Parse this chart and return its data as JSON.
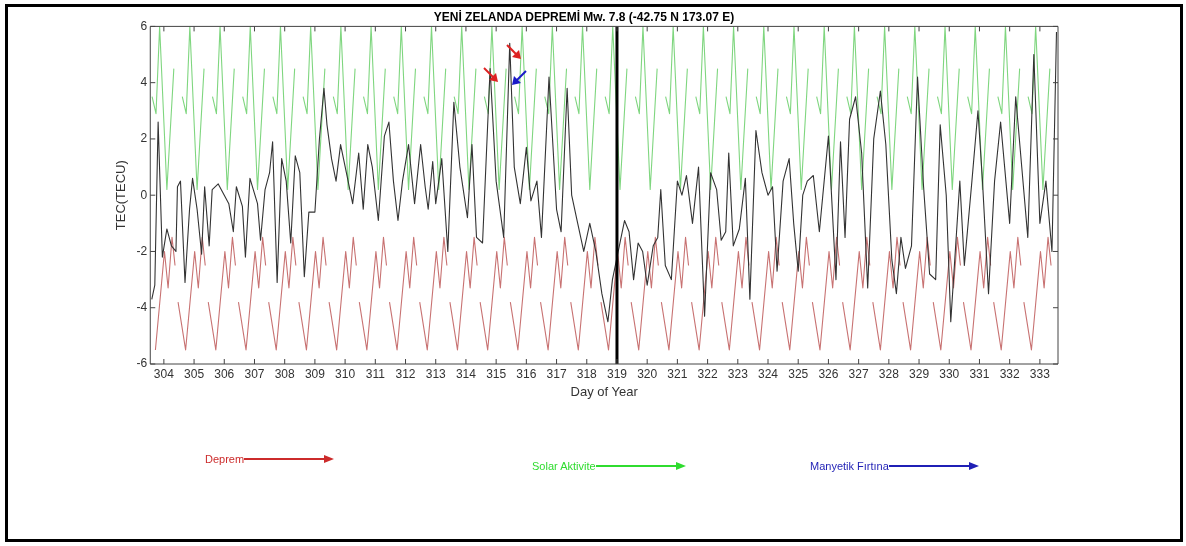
{
  "chart_data": {
    "type": "line",
    "title": "YENİ ZELANDA DEPREMİ Mw. 7.8 (-42.75 N 173.07 E)",
    "xlabel": "Day of Year",
    "ylabel": "TEC(TECU)",
    "xlim": [
      303.55,
      333.6
    ],
    "ylim": [
      -6,
      6
    ],
    "xticks": [
      304,
      305,
      306,
      307,
      308,
      309,
      310,
      311,
      312,
      313,
      314,
      315,
      316,
      317,
      318,
      319,
      320,
      321,
      322,
      323,
      324,
      325,
      326,
      327,
      328,
      329,
      330,
      331,
      332,
      333
    ],
    "yticks": [
      -6,
      -4,
      -2,
      0,
      2,
      4,
      6
    ],
    "series": [
      {
        "color": "#333333",
        "x": [
          303.6,
          303.7,
          303.81,
          303.95,
          304.1,
          304.25,
          304.4,
          304.45,
          304.55,
          304.7,
          304.85,
          304.95,
          305.1,
          305.25,
          305.35,
          305.5,
          305.6,
          305.8,
          306.0,
          306.15,
          306.3,
          306.4,
          306.6,
          306.7,
          306.85,
          307.1,
          307.2,
          307.35,
          307.5,
          307.6,
          307.75,
          307.9,
          308.05,
          308.2,
          308.35,
          308.5,
          308.65,
          308.8,
          309.0,
          309.15,
          309.3,
          309.4,
          309.55,
          309.7,
          309.85,
          310.1,
          310.25,
          310.45,
          310.6,
          310.75,
          310.9,
          311.1,
          311.3,
          311.45,
          311.6,
          311.75,
          311.9,
          312.1,
          312.3,
          312.5,
          312.65,
          312.75,
          312.9,
          313.0,
          313.2,
          313.4,
          313.6,
          313.8,
          314.05,
          314.2,
          314.35,
          314.55,
          314.8,
          315.0,
          315.25,
          315.45,
          315.6,
          315.8,
          316.0,
          316.15,
          316.35,
          316.5,
          316.75,
          317.0,
          317.15,
          317.35,
          317.5,
          317.7,
          317.9,
          318.1,
          318.3,
          318.5,
          318.7,
          318.85,
          319.25,
          319.4,
          319.55,
          319.7,
          319.85,
          320.0,
          320.2,
          320.35,
          320.45,
          320.6,
          320.8,
          321.0,
          321.15,
          321.3,
          321.5,
          321.7,
          321.9,
          322.1,
          322.3,
          322.45,
          322.6,
          322.7,
          322.85,
          323.05,
          323.25,
          323.4,
          323.6,
          323.8,
          324.0,
          324.15,
          324.3,
          324.5,
          324.7,
          324.85,
          325.0,
          325.15,
          325.3,
          325.5,
          325.7,
          326.0,
          326.25,
          326.4,
          326.55,
          326.7,
          326.9,
          327.1,
          327.3,
          327.5,
          327.72,
          327.9,
          328.1,
          328.25,
          328.4,
          328.55,
          328.75,
          328.95,
          329.15,
          329.35,
          329.55,
          329.7,
          329.9,
          330.05,
          330.2,
          330.35,
          330.5,
          330.75,
          330.95,
          331.1,
          331.3,
          331.5,
          331.7,
          332.0,
          332.2,
          332.4,
          332.6,
          332.8,
          333.0,
          333.2,
          333.4,
          333.55
        ],
        "values": [
          -3.7,
          -3.2,
          2.6,
          -2.2,
          -1.2,
          -1.8,
          -2.0,
          0.3,
          0.5,
          -3.1,
          -0.5,
          0.6,
          -0.5,
          -2.1,
          0.3,
          -1.8,
          0.2,
          0.4,
          0.0,
          -0.3,
          -1.3,
          0.3,
          -0.4,
          -2.2,
          0.6,
          -0.3,
          -1.6,
          0.2,
          0.8,
          1.9,
          -3.1,
          1.3,
          0.5,
          -1.7,
          1.4,
          0.8,
          -2.9,
          -0.6,
          -0.6,
          2.0,
          3.8,
          2.5,
          1.3,
          0.5,
          1.8,
          0.5,
          -0.3,
          1.5,
          -0.5,
          1.8,
          1.0,
          -0.9,
          2.1,
          2.6,
          0.5,
          -0.9,
          0.5,
          1.8,
          -0.3,
          1.8,
          0.3,
          -0.5,
          1.2,
          -0.3,
          1.3,
          -2.0,
          3.3,
          1.0,
          -0.8,
          1.8,
          -1.5,
          -1.7,
          4.5,
          0.5,
          -1.5,
          5.4,
          1.0,
          -0.3,
          1.7,
          -0.2,
          0.5,
          -1.5,
          4.2,
          -0.5,
          -1.3,
          3.8,
          0.0,
          -1.0,
          -2.0,
          -1.0,
          -2.0,
          -3.5,
          -4.5,
          -3.0,
          -0.9,
          -1.3,
          -3.0,
          -1.7,
          -2.0,
          -3.2,
          -1.8,
          -1.5,
          0.2,
          -2.5,
          -3.0,
          0.5,
          0.0,
          0.7,
          -1.0,
          1.0,
          -4.3,
          0.8,
          0.2,
          -1.6,
          -1.3,
          1.5,
          -1.8,
          -1.2,
          0.6,
          -3.7,
          2.3,
          0.8,
          0.0,
          0.3,
          -2.7,
          0.5,
          1.3,
          -1.0,
          -2.7,
          0.0,
          0.5,
          0.7,
          -1.3,
          2.1,
          -3.0,
          1.9,
          -1.5,
          2.7,
          3.5,
          1.5,
          -3.3,
          2.0,
          3.7,
          1.8,
          -2.3,
          -3.5,
          -1.5,
          -2.6,
          -1.8,
          4.2,
          0.3,
          -2.8,
          -3.0,
          2.5,
          0.0,
          -4.5,
          -2.0,
          0.5,
          -2.5,
          0.5,
          3.0,
          0.5,
          -3.5,
          0.5,
          2.6,
          -1.0,
          3.5,
          1.0,
          -1.5,
          5.0,
          -1.0,
          0.5,
          -2.0,
          5.8
        ]
      },
      {
        "color": "#7fd67f",
        "x": [
          303.61,
          303.74,
          303.86,
          304.1,
          304.33,
          304.41,
          304.61,
          304.74,
          304.86,
          305.1,
          305.33,
          305.41,
          305.61,
          305.74,
          305.86,
          306.1,
          306.33,
          306.41,
          306.61,
          306.74,
          306.86,
          307.1,
          307.33,
          307.41,
          307.61,
          307.74,
          307.86,
          308.1,
          308.33,
          308.41,
          308.61,
          308.74,
          308.86,
          309.1,
          309.33,
          309.41,
          309.61,
          309.74,
          309.86,
          310.1,
          310.33,
          310.41,
          310.61,
          310.74,
          310.86,
          311.1,
          311.33,
          311.41,
          311.61,
          311.74,
          311.86,
          312.1,
          312.33,
          312.41,
          312.61,
          312.74,
          312.86,
          313.1,
          313.33,
          313.41,
          313.61,
          313.74,
          313.86,
          314.1,
          314.33,
          314.41,
          314.61,
          314.74,
          314.86,
          315.1,
          315.33,
          315.41,
          315.61,
          315.74,
          315.86,
          316.1,
          316.33,
          316.41,
          316.61,
          316.74,
          316.86,
          317.1,
          317.33,
          317.41,
          317.61,
          317.74,
          317.86,
          318.1,
          318.33,
          318.41,
          318.61,
          318.74,
          318.86,
          319.1,
          319.33,
          319.41,
          319.61,
          319.74,
          319.86,
          320.1,
          320.33,
          320.41,
          320.61,
          320.74,
          320.86,
          321.1,
          321.33,
          321.41,
          321.61,
          321.74,
          321.86,
          322.1,
          322.33,
          322.41,
          322.61,
          322.74,
          322.86,
          323.1,
          323.33,
          323.41,
          323.61,
          323.74,
          323.86,
          324.1,
          324.33,
          324.41,
          324.61,
          324.74,
          324.86,
          325.1,
          325.33,
          325.41,
          325.61,
          325.74,
          325.86,
          326.1,
          326.33,
          326.41,
          326.61,
          326.74,
          326.86,
          327.1,
          327.33,
          327.41,
          327.61,
          327.74,
          327.86,
          328.1,
          328.33,
          328.41,
          328.61,
          328.74,
          328.86,
          329.1,
          329.33,
          329.41,
          329.61,
          329.74,
          329.86,
          330.1,
          330.33,
          330.41,
          330.61,
          330.74,
          330.86,
          331.1,
          331.33,
          331.41,
          331.61,
          331.74,
          331.86,
          332.1,
          332.33,
          332.41,
          332.61,
          332.74,
          332.86,
          333.1,
          333.33
        ],
        "values": [
          3.5,
          2.9,
          6,
          0.2,
          4.5,
          null,
          3.5,
          2.9,
          6,
          0.2,
          4.5,
          null,
          3.5,
          2.9,
          6,
          0.2,
          4.5,
          null,
          3.5,
          2.9,
          6,
          0.2,
          4.5,
          null,
          3.5,
          2.9,
          6,
          0.2,
          4.5,
          null,
          3.5,
          2.9,
          6,
          0.2,
          4.5,
          null,
          3.5,
          2.9,
          6,
          0.2,
          4.5,
          null,
          3.5,
          2.9,
          6,
          0.2,
          4.5,
          null,
          3.5,
          2.9,
          6,
          0.2,
          4.5,
          null,
          3.5,
          2.9,
          6,
          0.2,
          4.5,
          null,
          3.5,
          2.9,
          6,
          0.2,
          4.5,
          null,
          3.5,
          2.9,
          6,
          0.2,
          4.5,
          null,
          3.5,
          2.9,
          6,
          0.2,
          4.5,
          null,
          3.5,
          2.9,
          6,
          0.2,
          4.5,
          null,
          3.5,
          2.9,
          6,
          0.2,
          4.5,
          null,
          3.5,
          2.9,
          6,
          0.2,
          4.5,
          null,
          3.5,
          2.9,
          6,
          0.2,
          4.5,
          null,
          3.5,
          2.9,
          6,
          0.2,
          4.5,
          null,
          3.5,
          2.9,
          6,
          0.2,
          4.5,
          null,
          3.5,
          2.9,
          6,
          0.2,
          4.5,
          null,
          3.5,
          2.9,
          6,
          0.2,
          4.5,
          null,
          3.5,
          2.9,
          6,
          0.2,
          4.5,
          null,
          3.5,
          2.9,
          6,
          0.2,
          4.5,
          null,
          3.5,
          2.9,
          6,
          0.2,
          4.5,
          null,
          3.5,
          2.9,
          6,
          0.2,
          4.5,
          null,
          3.5,
          2.9,
          6,
          0.2,
          4.5,
          null,
          3.5,
          2.9,
          6,
          0.2,
          4.5,
          null,
          3.5,
          2.9,
          6,
          0.2,
          4.5,
          null,
          3.5,
          2.9,
          6,
          0.2,
          4.5,
          null,
          3.5,
          2.9,
          6,
          0.2,
          4.5
        ]
      },
      {
        "color": "#c87272",
        "x": [
          303.72,
          304.02,
          304.14,
          304.27,
          304.37,
          304.42,
          304.47,
          304.72,
          305.02,
          305.14,
          305.27,
          305.37,
          305.42,
          305.47,
          305.72,
          306.02,
          306.14,
          306.27,
          306.37,
          306.42,
          306.47,
          306.72,
          307.02,
          307.14,
          307.27,
          307.37,
          307.42,
          307.47,
          307.72,
          308.02,
          308.14,
          308.27,
          308.37,
          308.42,
          308.47,
          308.72,
          309.02,
          309.14,
          309.27,
          309.37,
          309.42,
          309.47,
          309.72,
          310.02,
          310.14,
          310.27,
          310.37,
          310.42,
          310.47,
          310.72,
          311.02,
          311.14,
          311.27,
          311.37,
          311.42,
          311.47,
          311.72,
          312.02,
          312.14,
          312.27,
          312.37,
          312.42,
          312.47,
          312.72,
          313.02,
          313.14,
          313.27,
          313.37,
          313.42,
          313.47,
          313.72,
          314.02,
          314.14,
          314.27,
          314.37,
          314.42,
          314.47,
          314.72,
          315.02,
          315.14,
          315.27,
          315.37,
          315.42,
          315.47,
          315.72,
          316.02,
          316.14,
          316.27,
          316.37,
          316.42,
          316.47,
          316.72,
          317.02,
          317.14,
          317.27,
          317.37,
          317.42,
          317.47,
          317.72,
          318.02,
          318.14,
          318.27,
          318.37,
          318.42,
          318.47,
          318.72,
          319.02,
          319.14,
          319.27,
          319.37,
          319.42,
          319.47,
          319.72,
          320.02,
          320.14,
          320.27,
          320.37,
          320.42,
          320.47,
          320.72,
          321.02,
          321.14,
          321.27,
          321.37,
          321.42,
          321.47,
          321.72,
          322.02,
          322.14,
          322.27,
          322.37,
          322.42,
          322.47,
          322.72,
          323.02,
          323.14,
          323.27,
          323.37,
          323.42,
          323.47,
          323.72,
          324.02,
          324.14,
          324.27,
          324.37,
          324.42,
          324.47,
          324.72,
          325.02,
          325.14,
          325.27,
          325.37,
          325.42,
          325.47,
          325.72,
          326.02,
          326.14,
          326.27,
          326.37,
          326.42,
          326.47,
          326.72,
          327.02,
          327.14,
          327.27,
          327.37,
          327.42,
          327.47,
          327.72,
          328.02,
          328.14,
          328.27,
          328.37,
          328.42,
          328.47,
          328.72,
          329.02,
          329.14,
          329.27,
          329.37,
          329.42,
          329.47,
          329.72,
          330.02,
          330.14,
          330.27,
          330.37,
          330.42,
          330.47,
          330.72,
          331.02,
          331.14,
          331.27,
          331.37,
          331.42,
          331.47,
          331.72,
          332.02,
          332.14,
          332.27,
          332.37,
          332.42,
          332.47,
          332.72,
          333.02,
          333.14,
          333.27,
          333.37
        ],
        "values": [
          -5.5,
          -2,
          -3.3,
          -1.5,
          -2.5,
          null,
          -3.8,
          -5.5,
          -2,
          -3.3,
          -1.5,
          -2.5,
          null,
          -3.8,
          -5.5,
          -2,
          -3.3,
          -1.5,
          -2.5,
          null,
          -3.8,
          -5.5,
          -2,
          -3.3,
          -1.5,
          -2.5,
          null,
          -3.8,
          -5.5,
          -2,
          -3.3,
          -1.5,
          -2.5,
          null,
          -3.8,
          -5.5,
          -2,
          -3.3,
          -1.5,
          -2.5,
          null,
          -3.8,
          -5.5,
          -2,
          -3.3,
          -1.5,
          -2.5,
          null,
          -3.8,
          -5.5,
          -2,
          -3.3,
          -1.5,
          -2.5,
          null,
          -3.8,
          -5.5,
          -2,
          -3.3,
          -1.5,
          -2.5,
          null,
          -3.8,
          -5.5,
          -2,
          -3.3,
          -1.5,
          -2.5,
          null,
          -3.8,
          -5.5,
          -2,
          -3.3,
          -1.5,
          -2.5,
          null,
          -3.8,
          -5.5,
          -2,
          -3.3,
          -1.5,
          -2.5,
          null,
          -3.8,
          -5.5,
          -2,
          -3.3,
          -1.5,
          -2.5,
          null,
          -3.8,
          -5.5,
          -2,
          -3.3,
          -1.5,
          -2.5,
          null,
          -3.8,
          -5.5,
          -2,
          -3.3,
          -1.5,
          -2.5,
          null,
          -3.8,
          -5.5,
          -2,
          -3.3,
          -1.5,
          -2.5,
          null,
          -3.8,
          -5.5,
          -2,
          -3.3,
          -1.5,
          -2.5,
          null,
          -3.8,
          -5.5,
          -2,
          -3.3,
          -1.5,
          -2.5,
          null,
          -3.8,
          -5.5,
          -2,
          -3.3,
          -1.5,
          -2.5,
          null,
          -3.8,
          -5.5,
          -2,
          -3.3,
          -1.5,
          -2.5,
          null,
          -3.8,
          -5.5,
          -2,
          -3.3,
          -1.5,
          -2.5,
          null,
          -3.8,
          -5.5,
          -2,
          -3.3,
          -1.5,
          -2.5,
          null,
          -3.8,
          -5.5,
          -2,
          -3.3,
          -1.5,
          -2.5,
          null,
          -3.8,
          -5.5,
          -2,
          -3.3,
          -1.5,
          -2.5,
          null,
          -3.8,
          -5.5,
          -2,
          -3.3,
          -1.5,
          -2.5,
          null,
          -3.8,
          -5.5,
          -2,
          -3.3,
          -1.5,
          -2.5,
          null,
          -3.8,
          -5.5,
          -2,
          -3.3,
          -1.5,
          -2.5,
          null,
          -3.8,
          -5.5,
          -2,
          -3.3,
          -1.5,
          -2.5,
          null,
          -3.8,
          -5.5,
          -2,
          -3.3,
          -1.5,
          -2.5,
          null,
          -3.8,
          -5.5,
          -2,
          -3.3,
          -1.5,
          -2.5
        ]
      }
    ],
    "ref_lines": [
      {
        "axis": "x",
        "value": 319,
        "color": "#000000"
      }
    ],
    "annotations": [
      "Deprem",
      "Solar Aktivite",
      "Manyetik Fırtına"
    ]
  }
}
